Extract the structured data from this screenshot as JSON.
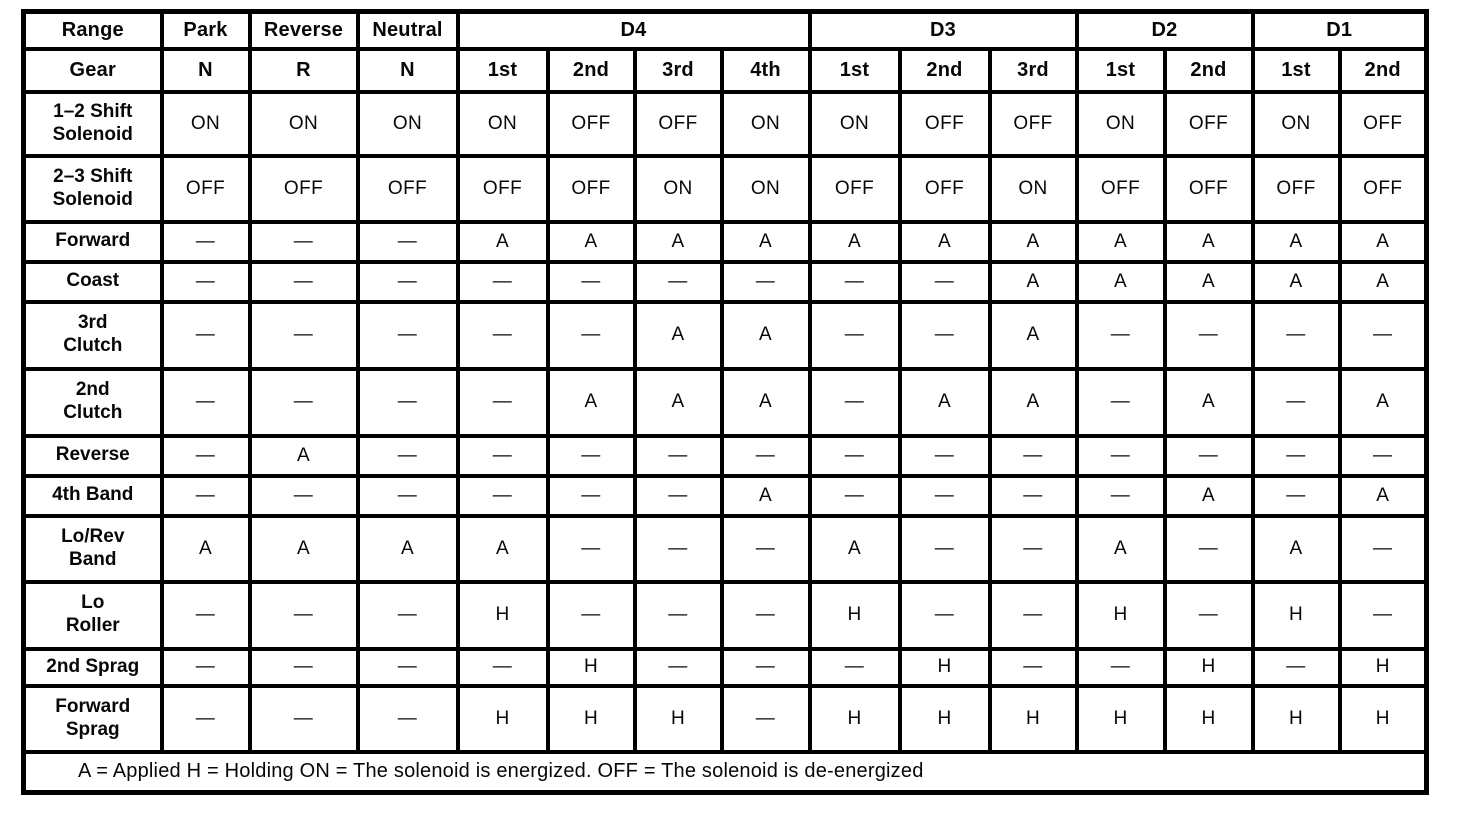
{
  "table": {
    "range_header": "Range",
    "gear_header": "Gear",
    "range_groups": [
      {
        "label": "Park",
        "span": 1
      },
      {
        "label": "Reverse",
        "span": 1
      },
      {
        "label": "Neutral",
        "span": 1
      },
      {
        "label": "D4",
        "span": 4
      },
      {
        "label": "D3",
        "span": 3
      },
      {
        "label": "D2",
        "span": 2
      },
      {
        "label": "D1",
        "span": 2
      }
    ],
    "gears": [
      "N",
      "R",
      "N",
      "1st",
      "2nd",
      "3rd",
      "4th",
      "1st",
      "2nd",
      "3rd",
      "1st",
      "2nd",
      "1st",
      "2nd"
    ],
    "rows": [
      {
        "label": "1–2 Shift\nSolenoid",
        "values": [
          "ON",
          "ON",
          "ON",
          "ON",
          "OFF",
          "OFF",
          "ON",
          "ON",
          "OFF",
          "OFF",
          "ON",
          "OFF",
          "ON",
          "OFF"
        ]
      },
      {
        "label": "2–3 Shift\nSolenoid",
        "values": [
          "OFF",
          "OFF",
          "OFF",
          "OFF",
          "OFF",
          "ON",
          "ON",
          "OFF",
          "OFF",
          "ON",
          "OFF",
          "OFF",
          "OFF",
          "OFF"
        ]
      },
      {
        "label": "Forward",
        "values": [
          "—",
          "—",
          "—",
          "A",
          "A",
          "A",
          "A",
          "A",
          "A",
          "A",
          "A",
          "A",
          "A",
          "A"
        ]
      },
      {
        "label": "Coast",
        "values": [
          "—",
          "—",
          "—",
          "—",
          "—",
          "—",
          "—",
          "—",
          "—",
          "A",
          "A",
          "A",
          "A",
          "A"
        ]
      },
      {
        "label": "3rd\nClutch",
        "values": [
          "—",
          "—",
          "—",
          "—",
          "—",
          "A",
          "A",
          "—",
          "—",
          "A",
          "—",
          "—",
          "—",
          "—"
        ]
      },
      {
        "label": "2nd\nClutch",
        "values": [
          "—",
          "—",
          "—",
          "—",
          "A",
          "A",
          "A",
          "—",
          "A",
          "A",
          "—",
          "A",
          "—",
          "A"
        ]
      },
      {
        "label": "Reverse",
        "values": [
          "—",
          "A",
          "—",
          "—",
          "—",
          "—",
          "—",
          "—",
          "—",
          "—",
          "—",
          "—",
          "—",
          "—"
        ]
      },
      {
        "label": "4th Band",
        "values": [
          "—",
          "—",
          "—",
          "—",
          "—",
          "—",
          "A",
          "—",
          "—",
          "—",
          "—",
          "A",
          "—",
          "A"
        ]
      },
      {
        "label": "Lo/Rev\nBand",
        "values": [
          "A",
          "A",
          "A",
          "A",
          "—",
          "—",
          "—",
          "A",
          "—",
          "—",
          "A",
          "—",
          "A",
          "—"
        ]
      },
      {
        "label": "Lo\nRoller",
        "values": [
          "—",
          "—",
          "—",
          "H",
          "—",
          "—",
          "—",
          "H",
          "—",
          "—",
          "H",
          "—",
          "H",
          "—"
        ]
      },
      {
        "label": "2nd Sprag",
        "values": [
          "—",
          "—",
          "—",
          "—",
          "H",
          "—",
          "—",
          "—",
          "H",
          "—",
          "—",
          "H",
          "—",
          "H"
        ]
      },
      {
        "label": "Forward\nSprag",
        "values": [
          "—",
          "—",
          "—",
          "H",
          "H",
          "H",
          "—",
          "H",
          "H",
          "H",
          "H",
          "H",
          "H",
          "H"
        ]
      }
    ],
    "legend": "A = Applied H = Holding ON = The solenoid is energized. OFF = The solenoid is de-energized"
  }
}
